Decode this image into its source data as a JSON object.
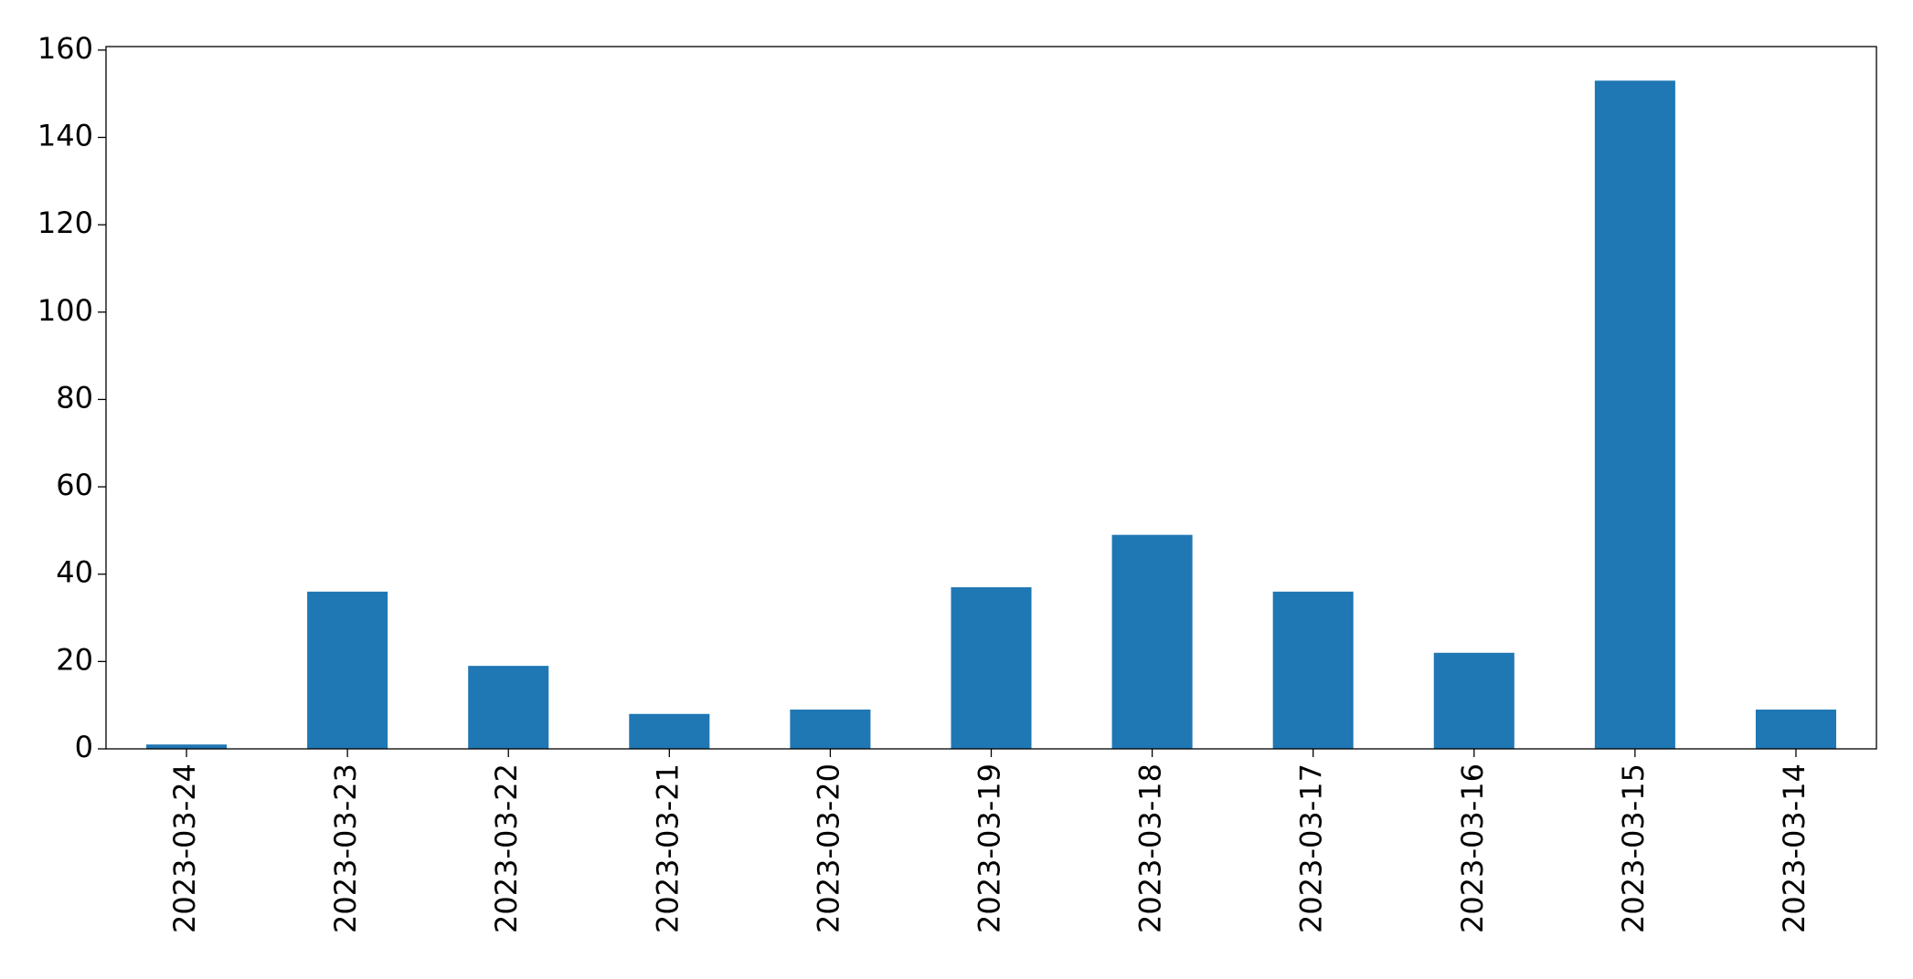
{
  "chart_data": {
    "type": "bar",
    "categories": [
      "2023-03-24",
      "2023-03-23",
      "2023-03-22",
      "2023-03-21",
      "2023-03-20",
      "2023-03-19",
      "2023-03-18",
      "2023-03-17",
      "2023-03-16",
      "2023-03-15",
      "2023-03-14"
    ],
    "values": [
      1,
      36,
      19,
      8,
      9,
      37,
      49,
      36,
      22,
      153,
      9
    ],
    "color": "#1f77b4",
    "ylim": [
      0,
      160.8
    ],
    "yticks": [
      0,
      20,
      40,
      60,
      80,
      100,
      120,
      140,
      160
    ],
    "grid": false
  }
}
